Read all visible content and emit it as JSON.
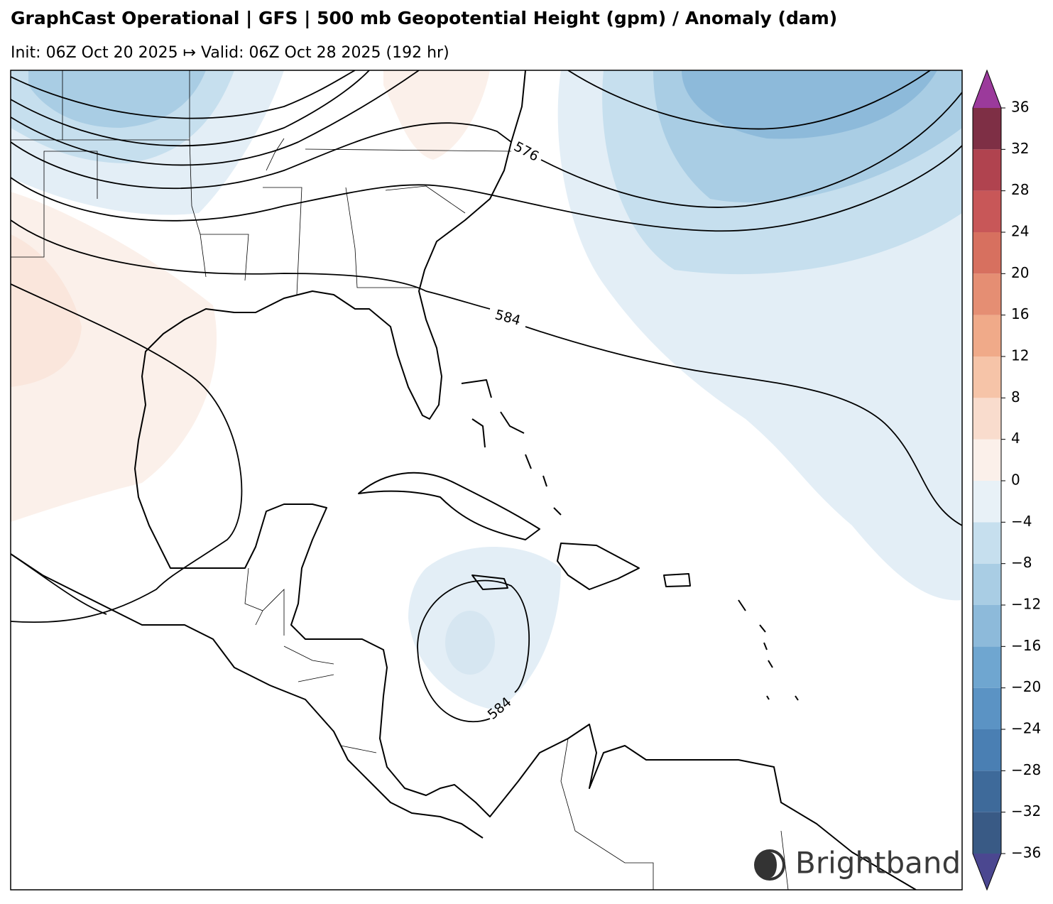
{
  "header": {
    "title": "GraphCast Operational | GFS | 500 mb Geopotential Height (gpm) / Anomaly (dam)",
    "subtitle": "Init: 06Z Oct 20 2025 ↦ Valid: 06Z Oct 28 2025 (192 hr)"
  },
  "map": {
    "contour_labels": [
      "576",
      "584",
      "584"
    ]
  },
  "colorbar": {
    "ticks": [
      {
        "value": -36,
        "label": "−36"
      },
      {
        "value": -32,
        "label": "−32"
      },
      {
        "value": -28,
        "label": "−28"
      },
      {
        "value": -24,
        "label": "−24"
      },
      {
        "value": -20,
        "label": "−20"
      },
      {
        "value": -16,
        "label": "−16"
      },
      {
        "value": -12,
        "label": "−12"
      },
      {
        "value": -8,
        "label": "−8"
      },
      {
        "value": -4,
        "label": "−4"
      },
      0,
      4,
      8,
      12,
      16,
      20,
      24,
      28,
      32,
      36
    ],
    "colors": [
      "#395a85",
      "#3e6a9a",
      "#4a7fb3",
      "#5b93c4",
      "#6fa6d0",
      "#8dbada",
      "#a9cde4",
      "#c6dfee",
      "#e8f1f7",
      "#fbf0ea",
      "#f9dccd",
      "#f6c4a8",
      "#f0aa89",
      "#e58e73",
      "#d7705f",
      "#c85758",
      "#b0434f",
      "#7e2f45"
    ],
    "extend_colors": [
      "#4b4790",
      "#9b3a9b"
    ]
  },
  "logo": {
    "text": "Brightband"
  }
}
